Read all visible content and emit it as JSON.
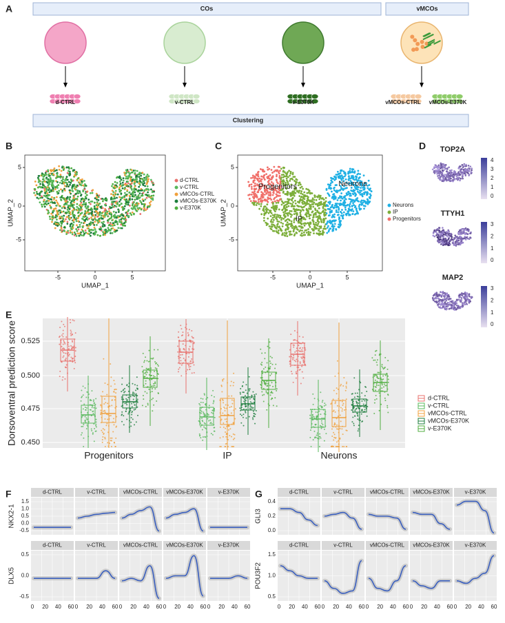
{
  "panel_a": {
    "label": "A",
    "cos": "COs",
    "vmcos": "vMCOs",
    "organoids": [
      "d-CTRL",
      "v-CTRL",
      "v-E370K",
      "vMCOs-CTRL",
      "vMCOs-E370K"
    ],
    "clustering": "Clustering"
  },
  "panel_b": {
    "label": "B",
    "x_label": "UMAP_1",
    "y_label": "UMAP_2",
    "xticks": [
      "-5",
      "0",
      "5"
    ],
    "yticks": [
      "5",
      "0",
      "-5"
    ],
    "legend": [
      {
        "name": "d-CTRL",
        "color": "#e8706c"
      },
      {
        "name": "v-CTRL",
        "color": "#58b85c"
      },
      {
        "name": "vMCOs-CTRL",
        "color": "#f0a03c"
      },
      {
        "name": "vMCOs-E370K",
        "color": "#1d7d3c"
      },
      {
        "name": "v-E370K",
        "color": "#4fae3f"
      }
    ]
  },
  "panel_c": {
    "label": "C",
    "x_label": "UMAP_1",
    "y_label": "UMAP_2",
    "xticks": [
      "-5",
      "0",
      "5"
    ],
    "yticks": [
      "5",
      "0",
      "-5"
    ],
    "legend": [
      {
        "name": "Neurons",
        "color": "#1fb0e4"
      },
      {
        "name": "IP",
        "color": "#7cae3a"
      },
      {
        "name": "Progenitors",
        "color": "#f0706a"
      }
    ],
    "cluster_labels": [
      "Progenitors",
      "Neurons",
      "IP"
    ]
  },
  "panel_d": {
    "label": "D",
    "genes": [
      {
        "name": "TOP2A",
        "scale": [
          "4",
          "3",
          "2",
          "1",
          "0"
        ]
      },
      {
        "name": "TTYH1",
        "scale": [
          "3",
          "2",
          "1",
          "0"
        ]
      },
      {
        "name": "MAP2",
        "scale": [
          "3",
          "2",
          "1",
          "0"
        ]
      }
    ]
  },
  "panel_e": {
    "label": "E",
    "y_label": "Dorsoventral prediction score",
    "yticks": [
      "0.525",
      "0.500",
      "0.475",
      "0.450"
    ],
    "groups": [
      "Progenitors",
      "IP",
      "Neurons"
    ],
    "legend": [
      {
        "name": "d-CTRL",
        "color": "#e8706c"
      },
      {
        "name": "v-CTRL",
        "color": "#58b85c"
      },
      {
        "name": "vMCOs-CTRL",
        "color": "#f0a03c"
      },
      {
        "name": "vMCOs-E370K",
        "color": "#1d7d3c"
      },
      {
        "name": "v-E370K",
        "color": "#4fae3f"
      }
    ]
  },
  "panel_f": {
    "label": "F",
    "facets": [
      "d-CTRL",
      "v-CTRL",
      "vMCOs-CTRL",
      "vMCOs-E370K",
      "v-E370K"
    ],
    "rows": [
      {
        "gene": "NKX2-1",
        "yticks": [
          "1.5",
          "1.0",
          "0.5",
          "0.0",
          "-0.5"
        ]
      },
      {
        "gene": "DLX5",
        "yticks": [
          "0.5",
          "0.0",
          "-0.5"
        ]
      }
    ],
    "xticks": [
      "0",
      "20",
      "40",
      "60"
    ]
  },
  "panel_g": {
    "label": "G",
    "facets": [
      "d-CTRL",
      "v-CTRL",
      "vMCOs-CTRL",
      "vMCOs-E370K",
      "v-E370K"
    ],
    "rows": [
      {
        "gene": "GLI3",
        "yticks": [
          "0.4",
          "0.2",
          "0.0"
        ]
      },
      {
        "gene": "POU3F2",
        "yticks": [
          "1.5",
          "1.0",
          "0.5"
        ]
      }
    ],
    "xticks": [
      "0",
      "20",
      "40",
      "60"
    ]
  }
}
